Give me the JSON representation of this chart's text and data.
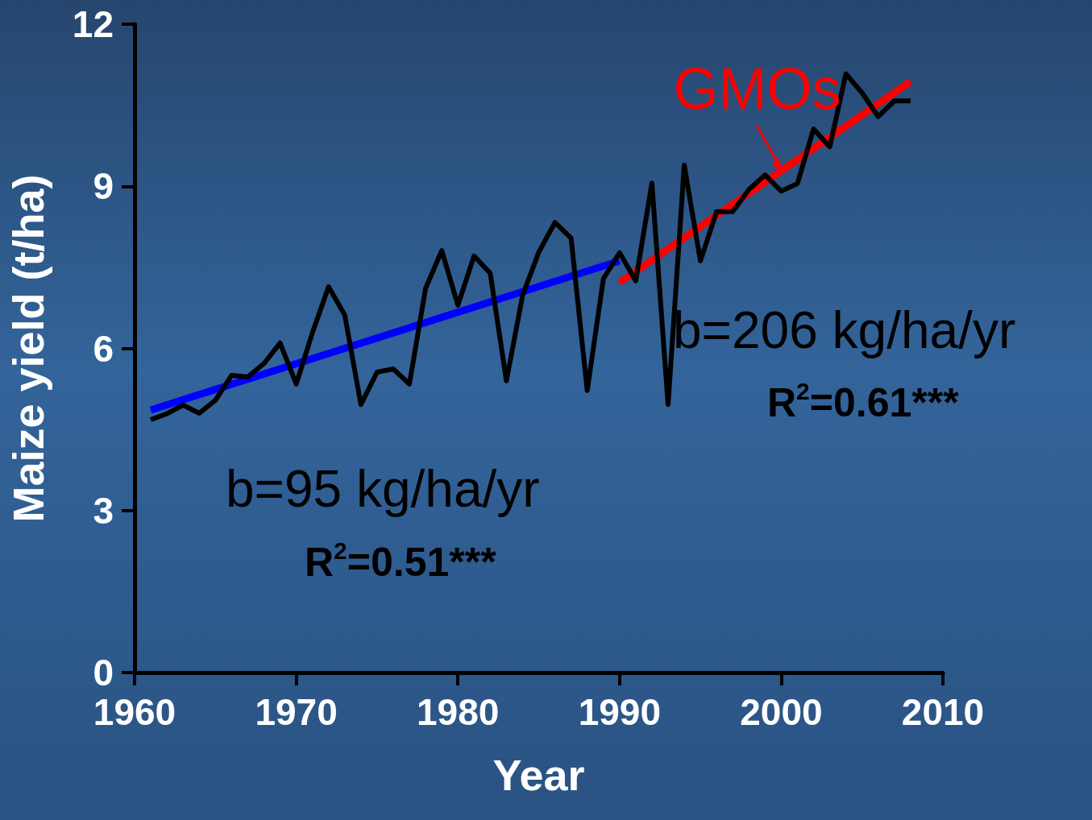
{
  "chart_data": {
    "type": "line",
    "xlabel": "Year",
    "ylabel": "Maize yield (t/ha)",
    "xlim": [
      1960,
      2010
    ],
    "xticks": [
      1960,
      1970,
      1980,
      1990,
      2000,
      2010
    ],
    "ylim": [
      0,
      12
    ],
    "yticks": [
      0,
      3,
      6,
      9,
      12
    ],
    "grid": false,
    "marker": "none",
    "line_style": "solid",
    "series": [
      {
        "color": "#000000",
        "x": [
          1961,
          1962,
          1963,
          1964,
          1965,
          1966,
          1967,
          1968,
          1969,
          1970,
          1971,
          1972,
          1973,
          1974,
          1975,
          1976,
          1977,
          1978,
          1979,
          1980,
          1981,
          1982,
          1983,
          1984,
          1985,
          1986,
          1987,
          1988,
          1989,
          1990,
          1991,
          1992,
          1993,
          1994,
          1995,
          1996,
          1997,
          1998,
          1999,
          2000,
          2001,
          2002,
          2003,
          2004,
          2005,
          2006,
          2007,
          2008
        ],
        "values": [
          4.68,
          4.79,
          4.95,
          4.8,
          5.04,
          5.5,
          5.47,
          5.72,
          6.1,
          5.34,
          6.29,
          7.14,
          6.62,
          4.96,
          5.56,
          5.62,
          5.34,
          7.11,
          7.81,
          6.8,
          7.71,
          7.39,
          5.4,
          6.98,
          7.78,
          8.33,
          8.04,
          5.22,
          7.29,
          7.77,
          7.25,
          9.06,
          4.96,
          9.39,
          7.62,
          8.53,
          8.53,
          8.94,
          9.21,
          8.91,
          9.05,
          10.06,
          9.73,
          11.08,
          10.73,
          10.29,
          10.58,
          10.58
        ]
      },
      {
        "type": "line",
        "color": "#0000ff",
        "x": [
          1961,
          1990
        ],
        "values": [
          4.86,
          7.62
        ]
      },
      {
        "type": "line",
        "color": "#ff0000",
        "x": [
          1990,
          2008
        ],
        "values": [
          7.22,
          10.94
        ]
      }
    ],
    "annotations": [
      "b=95 kg/ha/yr",
      "R$^{2}$=0.51***",
      "b=206 kg/ha/yr",
      "R$^{2}$=0.61***",
      {
        "text": "GMOs",
        "x": 2000,
        "y": 9.3
      }
    ]
  }
}
